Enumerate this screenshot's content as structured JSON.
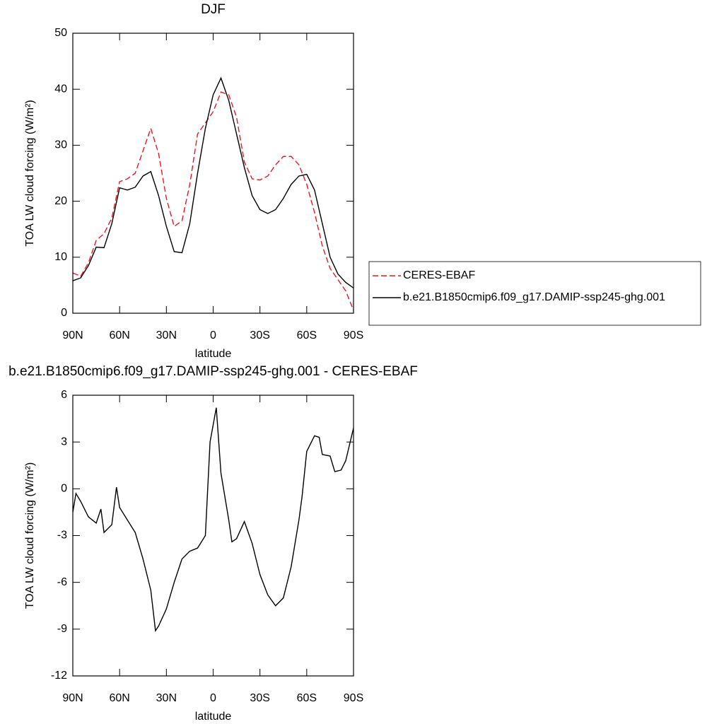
{
  "chart_data": [
    {
      "type": "line",
      "title": "DJF",
      "x_label": "latitude",
      "y_label": "TOA LW cloud forcing (W/m²)",
      "x": [
        90,
        85,
        80,
        75,
        70,
        65,
        60,
        55,
        50,
        45,
        40,
        35,
        30,
        25,
        20,
        15,
        10,
        5,
        0,
        -5,
        -10,
        -15,
        -20,
        -25,
        -30,
        -35,
        -40,
        -45,
        -50,
        -55,
        -60,
        -65,
        -70,
        -75,
        -80,
        -85,
        -90
      ],
      "series": [
        {
          "name": "CERES-EBAF",
          "color": "#e8191f",
          "dashed": true,
          "values": [
            7.2,
            6.6,
            9,
            13,
            14.2,
            17,
            23.5,
            24,
            25,
            29,
            33,
            28.5,
            20.5,
            15.5,
            16.5,
            23,
            32,
            34,
            36,
            39.5,
            39,
            35,
            27,
            24,
            23.8,
            24.5,
            26.5,
            28,
            28,
            26.5,
            23,
            18,
            12,
            8,
            6,
            4,
            0.5
          ]
        },
        {
          "name": "b.e21.B1850cmip6.f09_g17.DAMIP-ssp245-ghg.001",
          "color": "#000000",
          "dashed": false,
          "values": [
            5.8,
            6.3,
            8.5,
            11.8,
            11.7,
            16,
            22.4,
            22,
            22.5,
            24.5,
            25.3,
            21,
            15.5,
            11,
            10.8,
            16,
            25,
            33,
            39,
            42,
            38,
            32,
            26,
            21,
            18.5,
            17.8,
            18.5,
            20.5,
            23,
            24.5,
            24.8,
            22,
            16,
            10,
            7,
            5.5,
            4.5
          ]
        }
      ],
      "xlim": [
        90,
        -90
      ],
      "ylim": [
        0,
        50
      ],
      "xticks": [
        {
          "value": 90,
          "label": "90N"
        },
        {
          "value": 60,
          "label": "60N"
        },
        {
          "value": 30,
          "label": "30N"
        },
        0,
        {
          "value": -30,
          "label": "30S"
        },
        {
          "value": -60,
          "label": "60S"
        },
        {
          "value": -90,
          "label": "90S"
        }
      ],
      "yticks": [
        0,
        10,
        20,
        30,
        40,
        50
      ],
      "legend": "right"
    },
    {
      "type": "line",
      "title": "b.e21.B1850cmip6.f09_g17.DAMIP-ssp245-ghg.001 - CERES-EBAF",
      "x_label": "latitude",
      "y_label": "TOA LW cloud forcing (W/m²)",
      "x": [
        90,
        88,
        85,
        80,
        75,
        72,
        70,
        65,
        62,
        60,
        55,
        50,
        45,
        40,
        37,
        35,
        30,
        25,
        20,
        15,
        10,
        5,
        2,
        -2,
        -5,
        -10,
        -12,
        -15,
        -20,
        -25,
        -30,
        -35,
        -40,
        -45,
        -50,
        -55,
        -57,
        -60,
        -65,
        -68,
        -70,
        -75,
        -78,
        -82,
        -85,
        -90
      ],
      "series": [
        {
          "name": "b.e21.B1850cmip6.f09_g17.DAMIP-ssp245-ghg.001 - CERES-EBAF",
          "color": "#000000",
          "dashed": false,
          "values": [
            -1.5,
            -0.3,
            -0.8,
            -1.8,
            -2.2,
            -1.3,
            -2.8,
            -2.3,
            0.1,
            -1.2,
            -2,
            -2.8,
            -4.5,
            -6.5,
            -9.1,
            -8.8,
            -7.7,
            -6,
            -4.5,
            -4,
            -3.8,
            -3,
            3,
            5.2,
            1,
            -2,
            -3.4,
            -3.2,
            -2.1,
            -3.5,
            -5.5,
            -6.8,
            -7.5,
            -7,
            -5,
            -2,
            -0.5,
            2.4,
            3.4,
            3.3,
            2.2,
            2.1,
            1.1,
            1.2,
            1.8,
            3.9
          ]
        }
      ],
      "xlim": [
        90,
        -90
      ],
      "ylim": [
        -12,
        6
      ],
      "xticks": [
        {
          "value": 90,
          "label": "90N"
        },
        {
          "value": 60,
          "label": "60N"
        },
        {
          "value": 30,
          "label": "30N"
        },
        0,
        {
          "value": -30,
          "label": "30S"
        },
        {
          "value": -60,
          "label": "60S"
        },
        {
          "value": -90,
          "label": "90S"
        }
      ],
      "yticks": [
        -12,
        -9,
        -6,
        -3,
        0,
        3,
        6
      ]
    }
  ]
}
